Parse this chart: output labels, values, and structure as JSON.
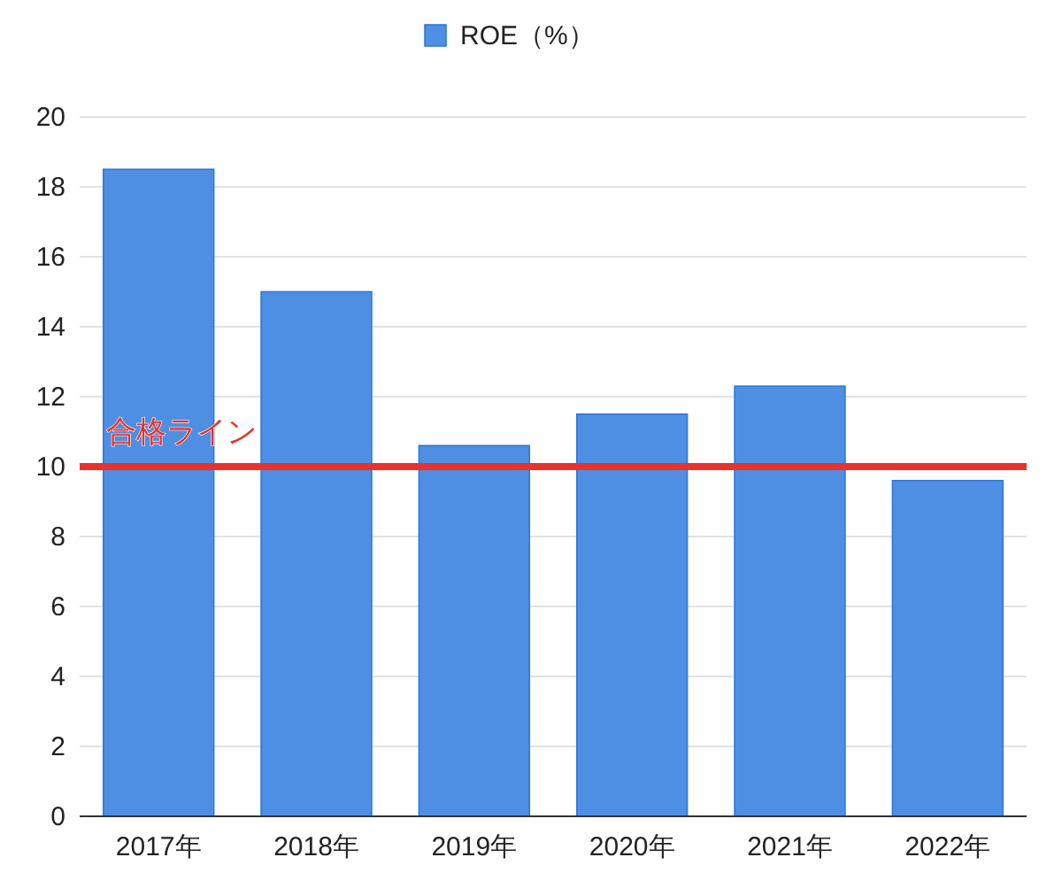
{
  "chart_data": {
    "type": "bar",
    "categories": [
      "2017年",
      "2018年",
      "2019年",
      "2020年",
      "2021年",
      "2022年"
    ],
    "series": [
      {
        "name": "ROE（%）",
        "color": "#4f8fe3",
        "values": [
          18.5,
          15.0,
          10.6,
          11.5,
          12.3,
          9.6
        ]
      }
    ],
    "ylim": [
      0,
      20
    ],
    "yticks": [
      0,
      2,
      4,
      6,
      8,
      10,
      12,
      14,
      16,
      18,
      20
    ],
    "grid": "y",
    "legend": "top",
    "ref_lines": [
      {
        "axis": "y",
        "value": 10,
        "label": "合格ライン",
        "color": "#e8322b",
        "line_style": "solid"
      }
    ]
  }
}
